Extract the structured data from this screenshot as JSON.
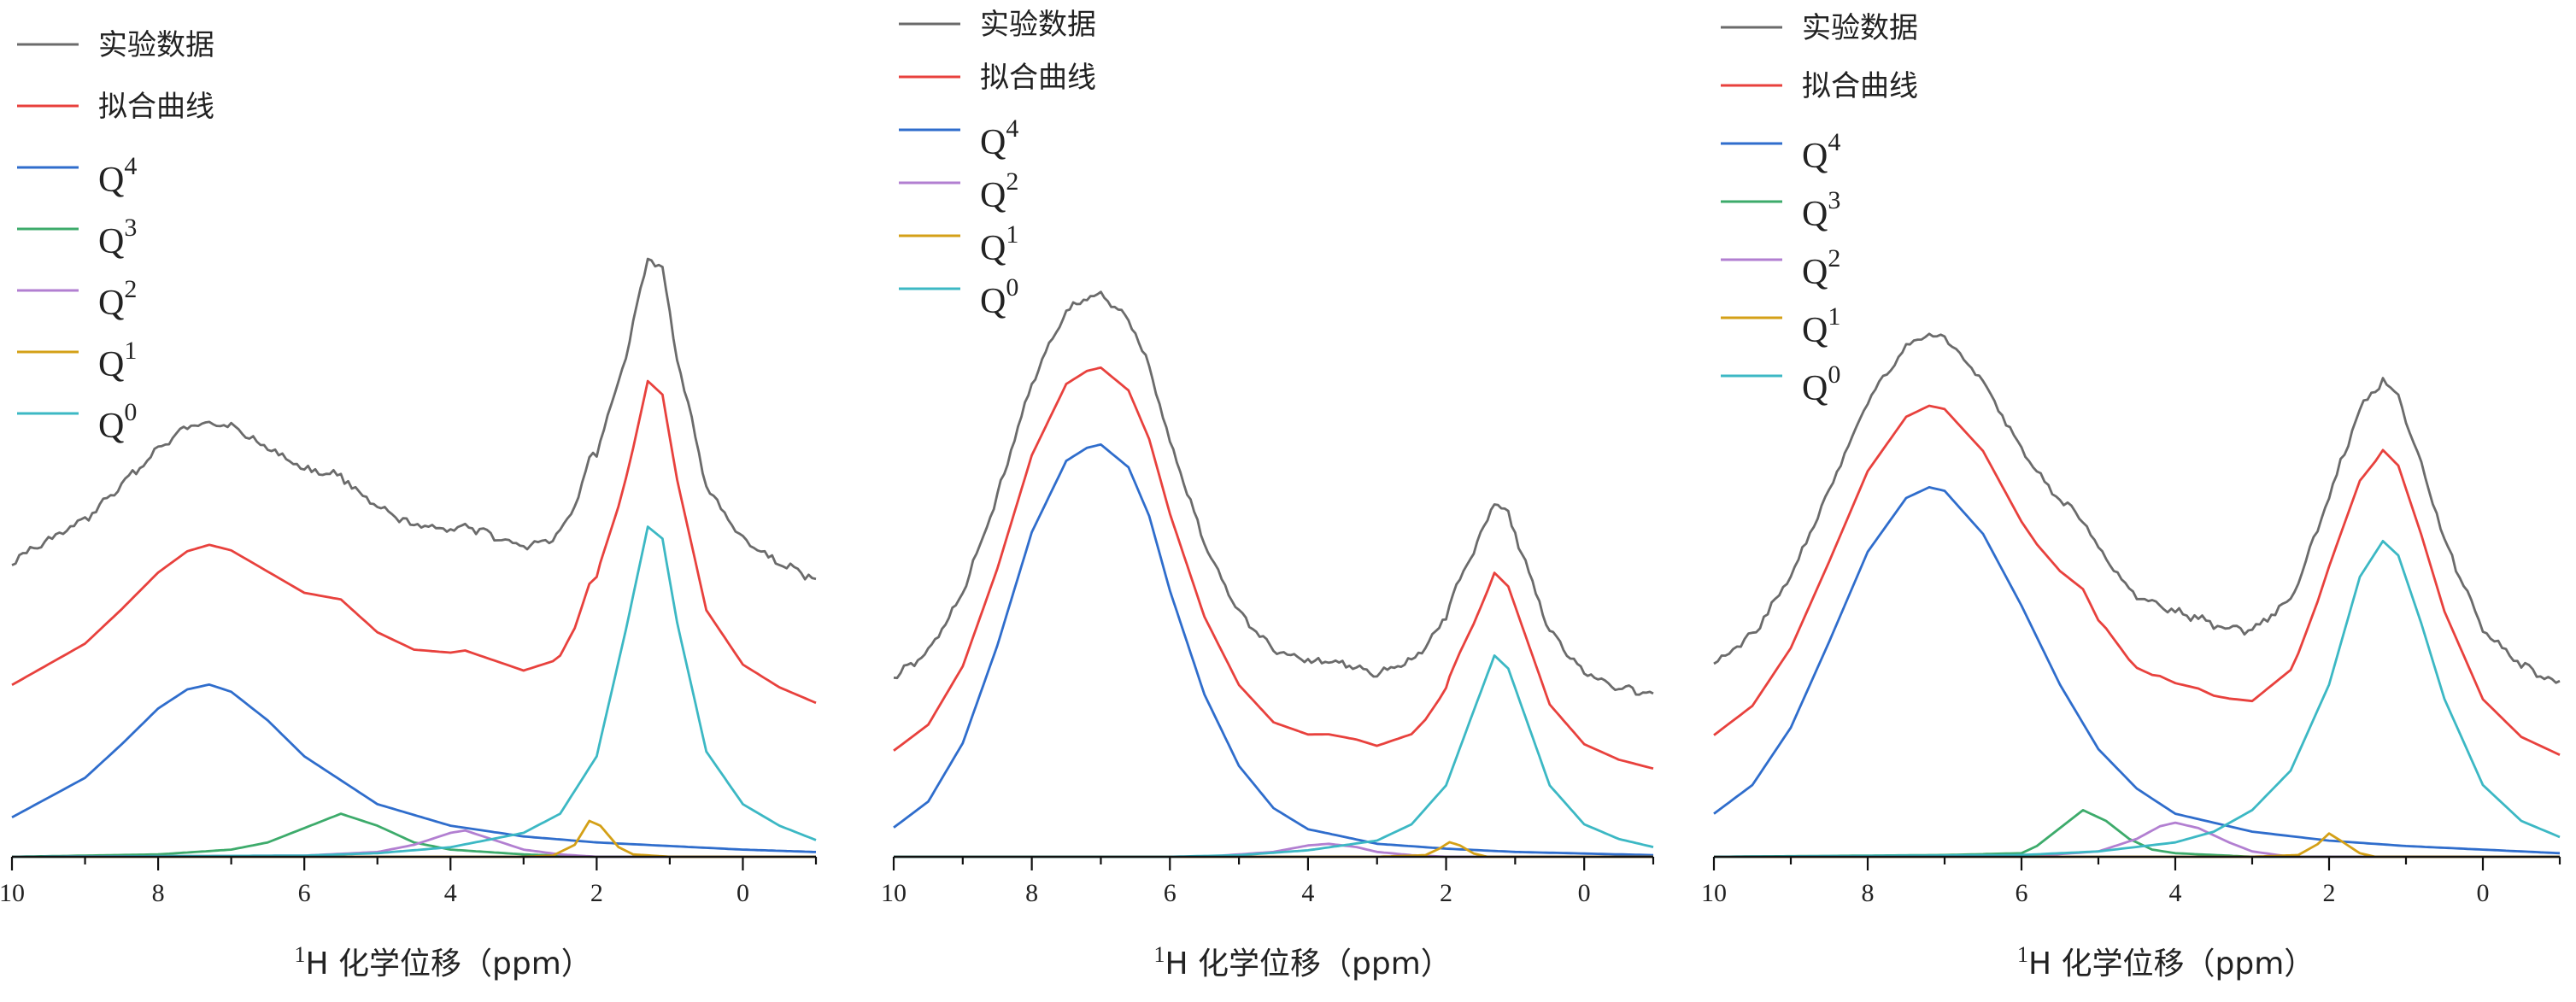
{
  "chart_data": [
    {
      "type": "line",
      "xlabel": {
        "sup": "1",
        "text": "H 化学位移（ppm）"
      },
      "xlim": [
        10,
        -1
      ],
      "x_ticks": [
        10,
        8,
        6,
        4,
        2,
        0
      ],
      "y_axis_visible": false,
      "legend_position": "top-left",
      "series": [
        {
          "name": "实验数据",
          "color": "#6b6b6b"
        },
        {
          "name": "拟合曲线",
          "color": "#e8413d"
        },
        {
          "name": "Q",
          "sup": "4",
          "color": "#2f6dcc",
          "x": [
            10,
            9,
            8.5,
            8,
            7.6,
            7.3,
            7,
            6.5,
            6,
            5,
            4,
            3,
            2,
            1,
            0,
            -1
          ],
          "y": [
            0.165,
            0.33,
            0.47,
            0.62,
            0.7,
            0.72,
            0.69,
            0.57,
            0.42,
            0.22,
            0.13,
            0.085,
            0.06,
            0.045,
            0.03,
            0.02
          ]
        },
        {
          "name": "Q",
          "sup": "3",
          "color": "#3dab6b",
          "x": [
            10,
            8,
            7,
            6.5,
            6,
            5.5,
            5,
            4.5,
            4,
            3,
            2,
            0,
            -1
          ],
          "y": [
            0,
            0.01,
            0.03,
            0.06,
            0.12,
            0.18,
            0.13,
            0.06,
            0.03,
            0.01,
            0,
            0,
            0
          ]
        },
        {
          "name": "Q",
          "sup": "2",
          "color": "#b27fd1",
          "x": [
            10,
            6,
            5,
            4.5,
            4,
            3.8,
            3.5,
            3,
            2.5,
            2,
            0,
            -1
          ],
          "y": [
            0,
            0.005,
            0.02,
            0.05,
            0.1,
            0.11,
            0.08,
            0.03,
            0.01,
            0,
            0,
            0
          ]
        },
        {
          "name": "Q",
          "sup": "1",
          "color": "#d4a017",
          "x": [
            10,
            3,
            2.6,
            2.3,
            2.1,
            1.95,
            1.7,
            1.5,
            1,
            -1
          ],
          "y": [
            0,
            0,
            0.005,
            0.05,
            0.15,
            0.13,
            0.04,
            0.01,
            0,
            0
          ]
        },
        {
          "name": "Q",
          "sup": "0",
          "color": "#3cb8c4",
          "x": [
            10,
            6,
            5,
            4,
            3,
            2.5,
            2,
            1.6,
            1.3,
            1.1,
            0.9,
            0.5,
            0,
            -0.5,
            -1
          ],
          "y": [
            0,
            0.005,
            0.015,
            0.04,
            0.1,
            0.18,
            0.42,
            0.95,
            1.38,
            1.33,
            0.98,
            0.44,
            0.22,
            0.13,
            0.07
          ]
        }
      ]
    },
    {
      "type": "line",
      "xlabel": {
        "sup": "1",
        "text": "H 化学位移（ppm）"
      },
      "xlim": [
        10,
        -1
      ],
      "x_ticks": [
        10,
        8,
        6,
        4,
        2,
        0
      ],
      "y_axis_visible": false,
      "legend_position": "top-left",
      "series": [
        {
          "name": "实验数据",
          "color": "#6b6b6b"
        },
        {
          "name": "拟合曲线",
          "color": "#e8413d"
        },
        {
          "name": "Q",
          "sup": "4",
          "color": "#2f6dcc",
          "x": [
            10,
            9.5,
            9,
            8.5,
            8,
            7.5,
            7.2,
            7,
            6.6,
            6.3,
            6,
            5.5,
            5,
            4.5,
            4,
            3,
            2,
            1,
            0,
            -1
          ],
          "y": [
            0.09,
            0.17,
            0.35,
            0.65,
            1.0,
            1.22,
            1.26,
            1.27,
            1.2,
            1.05,
            0.82,
            0.5,
            0.28,
            0.15,
            0.085,
            0.04,
            0.025,
            0.015,
            0.01,
            0.005
          ]
        },
        {
          "name": "Q",
          "sup": "2",
          "color": "#b27fd1",
          "x": [
            10,
            5.5,
            4.5,
            4,
            3.7,
            3.3,
            3,
            2.5,
            2,
            -1
          ],
          "y": [
            0,
            0,
            0.015,
            0.035,
            0.04,
            0.03,
            0.015,
            0.005,
            0,
            0
          ]
        },
        {
          "name": "Q",
          "sup": "1",
          "color": "#d4a017",
          "x": [
            10,
            3,
            2.3,
            2.1,
            1.95,
            1.8,
            1.6,
            1.4,
            -1
          ],
          "y": [
            0,
            0,
            0.005,
            0.025,
            0.045,
            0.035,
            0.01,
            0,
            0
          ]
        },
        {
          "name": "Q",
          "sup": "0",
          "color": "#3cb8c4",
          "x": [
            10,
            6,
            5,
            4,
            3,
            2.5,
            2,
            1.6,
            1.3,
            1.1,
            0.8,
            0.5,
            0,
            -0.5,
            -1
          ],
          "y": [
            0,
            0,
            0.005,
            0.02,
            0.05,
            0.1,
            0.22,
            0.45,
            0.62,
            0.58,
            0.4,
            0.22,
            0.1,
            0.055,
            0.03
          ]
        }
      ]
    },
    {
      "type": "line",
      "xlabel": {
        "sup": "1",
        "text": "H 化学位移（ppm）"
      },
      "xlim": [
        10,
        -1
      ],
      "x_ticks": [
        10,
        8,
        6,
        4,
        2,
        0
      ],
      "y_axis_visible": false,
      "legend_position": "top-left",
      "series": [
        {
          "name": "实验数据",
          "color": "#6b6b6b"
        },
        {
          "name": "拟合曲线",
          "color": "#e8413d"
        },
        {
          "name": "Q",
          "sup": "4",
          "color": "#2f6dcc",
          "x": [
            10,
            9.5,
            9,
            8.5,
            8,
            7.5,
            7.2,
            7,
            6.5,
            6,
            5.5,
            5,
            4.5,
            4,
            3,
            2,
            1,
            0,
            -1
          ],
          "y": [
            0.12,
            0.2,
            0.36,
            0.6,
            0.85,
            1.0,
            1.03,
            1.02,
            0.9,
            0.7,
            0.48,
            0.3,
            0.19,
            0.12,
            0.07,
            0.045,
            0.03,
            0.02,
            0.01
          ]
        },
        {
          "name": "Q",
          "sup": "3",
          "color": "#3dab6b",
          "x": [
            10,
            7,
            6,
            5.8,
            5.5,
            5.2,
            4.9,
            4.6,
            4.3,
            4,
            3,
            -1
          ],
          "y": [
            0,
            0.005,
            0.01,
            0.03,
            0.08,
            0.13,
            0.1,
            0.05,
            0.02,
            0.01,
            0,
            0
          ]
        },
        {
          "name": "Q",
          "sup": "2",
          "color": "#b27fd1",
          "x": [
            10,
            6,
            5,
            4.5,
            4.2,
            4,
            3.7,
            3.3,
            3,
            2.5,
            -1
          ],
          "y": [
            0,
            0,
            0.015,
            0.05,
            0.085,
            0.095,
            0.08,
            0.04,
            0.015,
            0,
            0
          ]
        },
        {
          "name": "Q",
          "sup": "1",
          "color": "#d4a017",
          "x": [
            10,
            3,
            2.4,
            2.15,
            2,
            1.85,
            1.6,
            1.4,
            -1
          ],
          "y": [
            0,
            0,
            0.005,
            0.035,
            0.065,
            0.045,
            0.01,
            0,
            0
          ]
        },
        {
          "name": "Q",
          "sup": "0",
          "color": "#3cb8c4",
          "x": [
            10,
            6,
            5,
            4,
            3.5,
            3,
            2.5,
            2,
            1.6,
            1.3,
            1.1,
            0.8,
            0.5,
            0,
            -0.5,
            -1
          ],
          "y": [
            0,
            0.005,
            0.015,
            0.04,
            0.07,
            0.13,
            0.24,
            0.48,
            0.78,
            0.88,
            0.84,
            0.65,
            0.44,
            0.2,
            0.1,
            0.055
          ]
        }
      ]
    }
  ]
}
